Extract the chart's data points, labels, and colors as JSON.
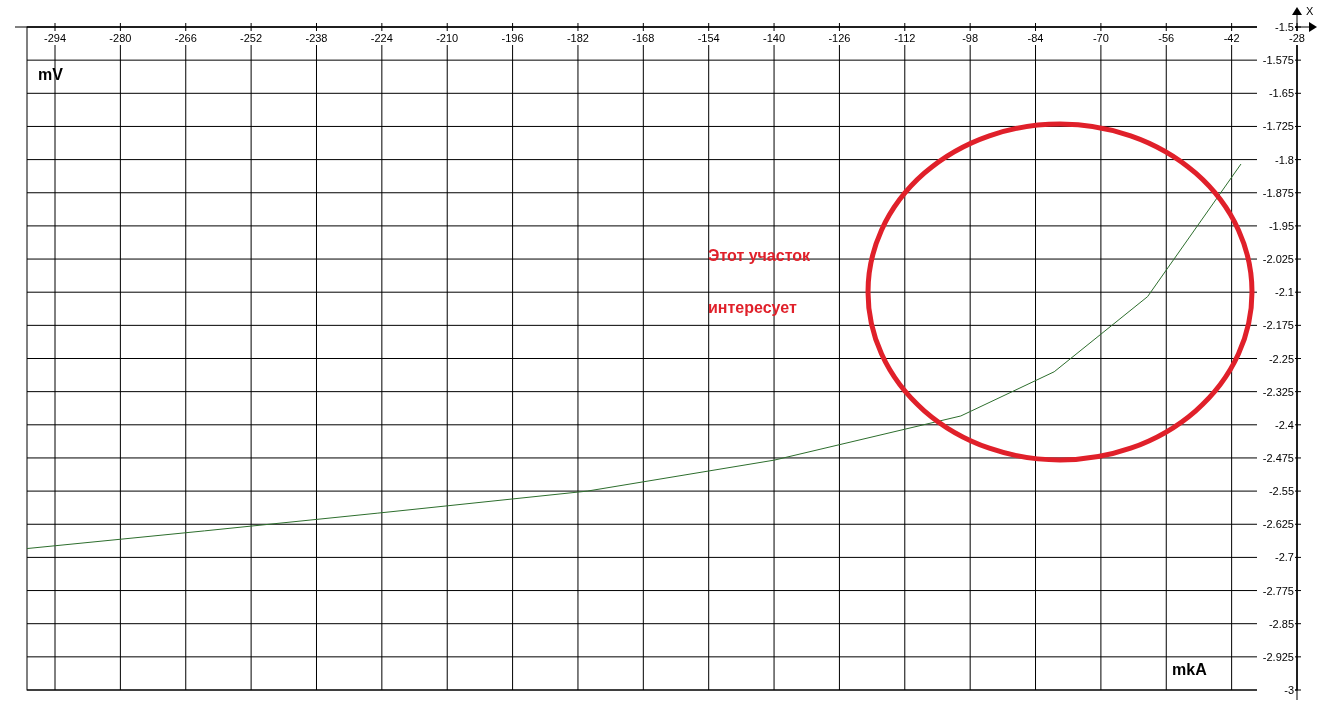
{
  "chart_data": {
    "type": "line",
    "xlabel": "mkA",
    "ylabel": "mV",
    "annotations": [
      "Этот участок\nинтересует",
      "X"
    ],
    "x": [
      -300,
      -262,
      -225,
      -180,
      -140,
      -100,
      -80,
      -60,
      -40
    ],
    "series": [
      {
        "color": "#2d6e2d",
        "values": [
          -2.68,
          -2.64,
          -2.6,
          -2.55,
          -2.48,
          -2.38,
          -2.28,
          -2.11,
          -1.81
        ]
      }
    ],
    "xlim": [
      -300,
      -28
    ],
    "ylim": [
      -3,
      -1.5
    ],
    "xticks": [
      -294,
      -280,
      -266,
      -252,
      -238,
      -224,
      -210,
      -196,
      -182,
      -168,
      -154,
      -140,
      -126,
      -112,
      -98,
      -84,
      -70,
      -56,
      -42,
      -28
    ],
    "yticks": [
      -1.5,
      -1.575,
      -1.65,
      -1.725,
      -1.8,
      -1.875,
      -1.95,
      -2.025,
      -2.1,
      -2.175,
      -2.25,
      -2.325,
      -2.4,
      -2.475,
      -2.55,
      -2.625,
      -2.7,
      -2.775,
      -2.85,
      -2.925,
      -3
    ],
    "grid": true
  }
}
